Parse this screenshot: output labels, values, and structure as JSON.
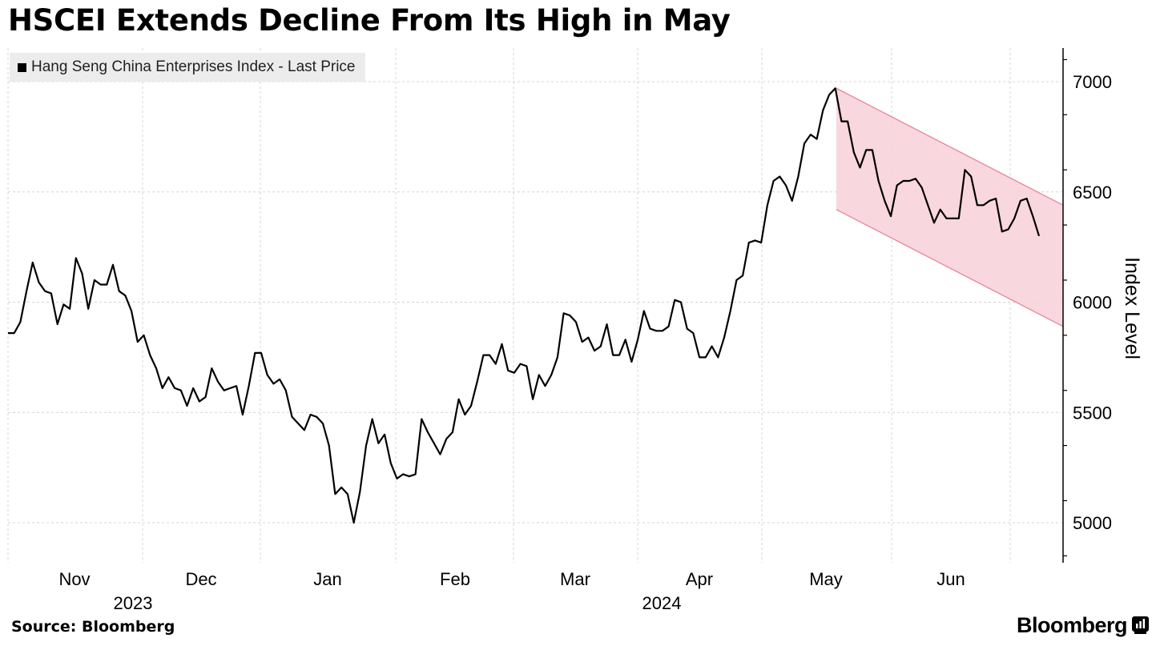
{
  "chart_data": {
    "type": "line",
    "title": "HSCEI Extends Decline From Its High in May",
    "ylabel": "Index Level",
    "xlabel": "",
    "ylim": [
      4800,
      7150
    ],
    "yticks": [
      5000,
      5500,
      6000,
      6500,
      7000
    ],
    "legend": {
      "position": "top-left",
      "entries": [
        "Hang Seng China Enterprises Index - Last Price"
      ]
    },
    "grid": true,
    "month_labels": [
      "Nov",
      "Dec",
      "Jan",
      "Feb",
      "Mar",
      "Apr",
      "May",
      "Jun"
    ],
    "year_labels": [
      "2023",
      "2024"
    ],
    "series": [
      {
        "name": "Hang Seng China Enterprises Index - Last Price",
        "values": [
          5860,
          5860,
          5910,
          6050,
          6180,
          6090,
          6050,
          6040,
          5900,
          5990,
          5970,
          6200,
          6130,
          5970,
          6100,
          6080,
          6080,
          6170,
          6050,
          6030,
          5960,
          5820,
          5850,
          5760,
          5700,
          5610,
          5660,
          5610,
          5600,
          5530,
          5610,
          5550,
          5570,
          5700,
          5640,
          5600,
          5610,
          5620,
          5490,
          5620,
          5770,
          5770,
          5670,
          5630,
          5650,
          5600,
          5480,
          5450,
          5420,
          5490,
          5480,
          5450,
          5350,
          5130,
          5160,
          5130,
          5000,
          5140,
          5350,
          5470,
          5360,
          5400,
          5270,
          5200,
          5220,
          5210,
          5220,
          5470,
          5410,
          5360,
          5310,
          5380,
          5410,
          5560,
          5490,
          5530,
          5640,
          5760,
          5760,
          5720,
          5810,
          5690,
          5680,
          5720,
          5710,
          5560,
          5670,
          5620,
          5670,
          5750,
          5950,
          5940,
          5910,
          5820,
          5840,
          5780,
          5800,
          5900,
          5760,
          5760,
          5830,
          5730,
          5830,
          5960,
          5880,
          5870,
          5870,
          5890,
          6010,
          6000,
          5880,
          5860,
          5750,
          5750,
          5800,
          5750,
          5840,
          5960,
          6100,
          6120,
          6270,
          6280,
          6270,
          6440,
          6550,
          6570,
          6530,
          6460,
          6570,
          6720,
          6760,
          6740,
          6870,
          6940,
          6970,
          6820,
          6820,
          6680,
          6610,
          6690,
          6690,
          6550,
          6460,
          6390,
          6530,
          6550,
          6550,
          6560,
          6520,
          6440,
          6360,
          6420,
          6380,
          6380,
          6380,
          6600,
          6570,
          6440,
          6440,
          6460,
          6470,
          6320,
          6330,
          6380,
          6460,
          6470,
          6390,
          6300
        ]
      }
    ],
    "annotations": [
      {
        "type": "shaded-channel",
        "color": "#f8d3da",
        "edge_color": "#e8879a",
        "upper_start": 6970,
        "upper_end": 6440,
        "lower_start": 6420,
        "lower_end": 5890
      }
    ],
    "source": "Source: Bloomberg",
    "brand": "Bloomberg"
  }
}
